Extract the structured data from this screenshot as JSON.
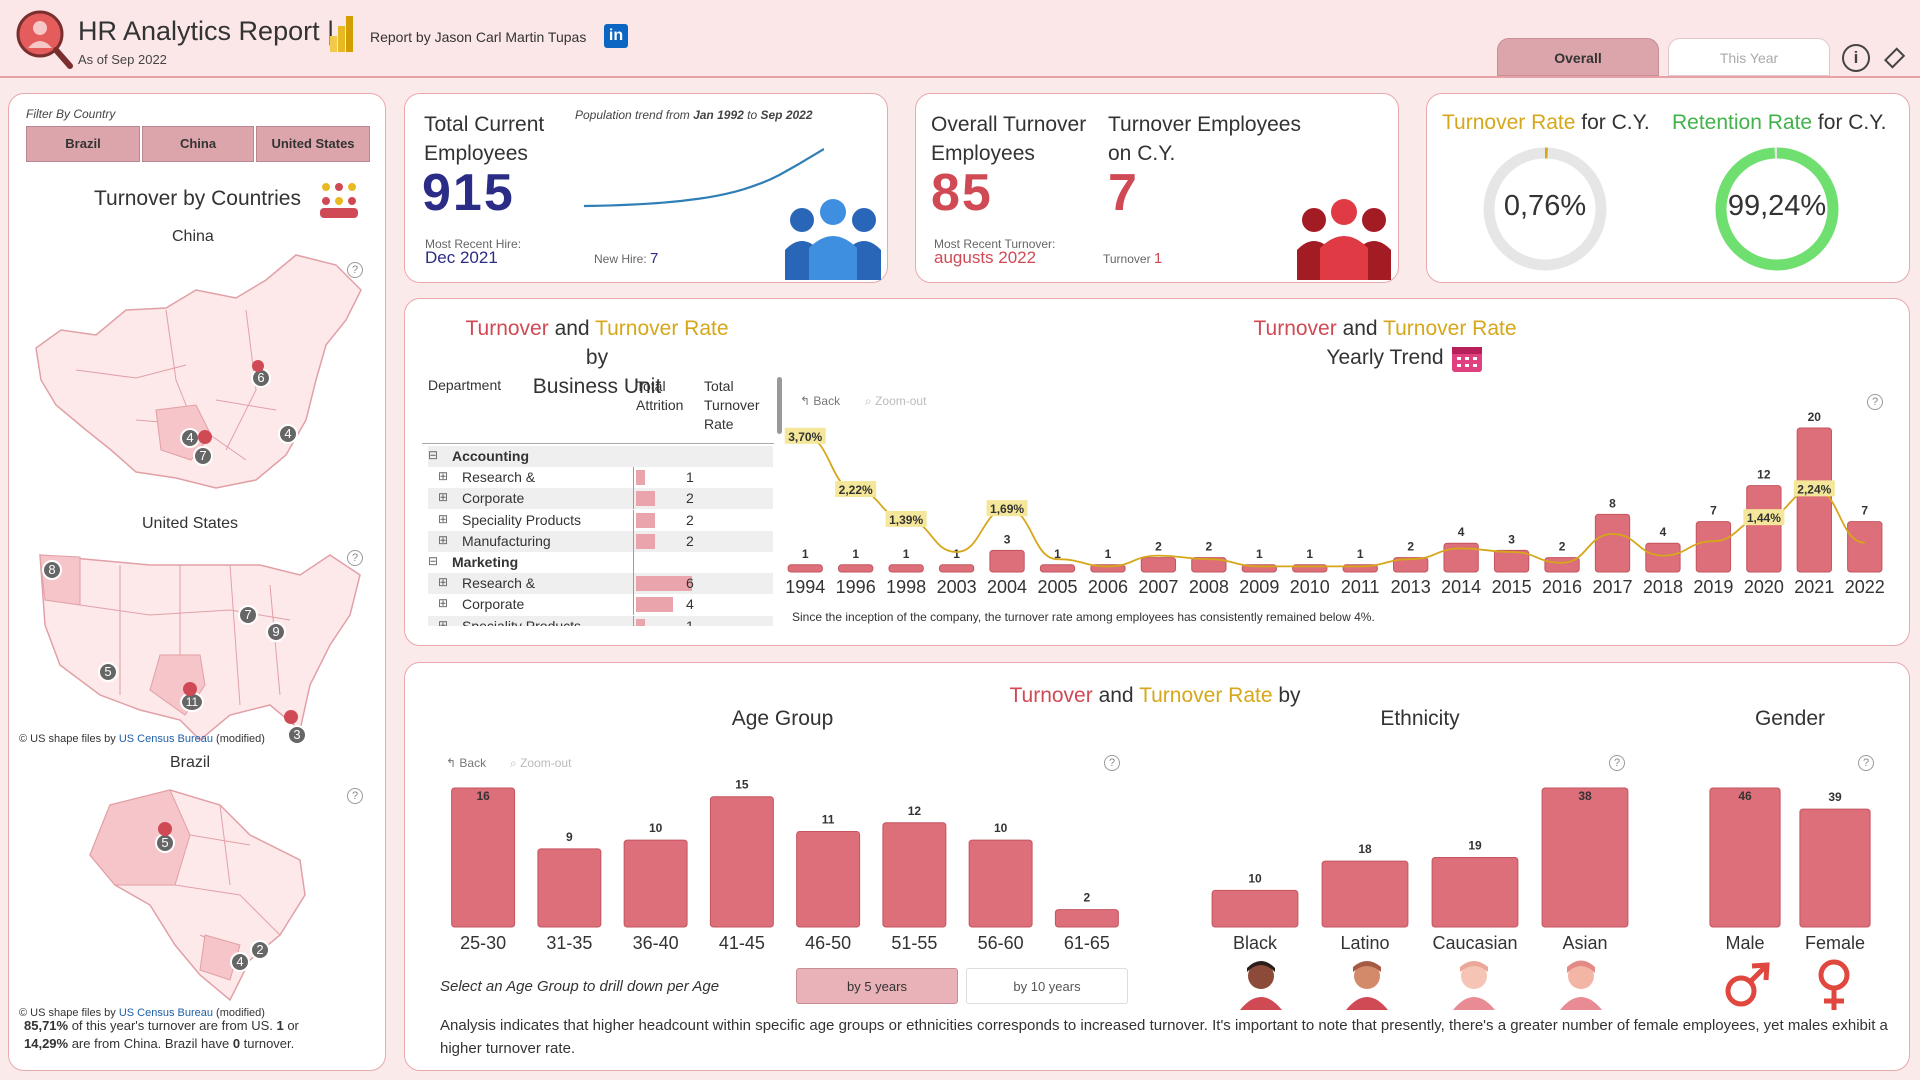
{
  "header": {
    "title": "HR Analytics Report |",
    "subtitle": "As of Sep 2022",
    "report_by": "Report by Jason Carl Martin Tupas",
    "tabs": [
      "Overall",
      "This Year"
    ]
  },
  "filter": {
    "label": "Filter By Country",
    "countries": [
      "Brazil",
      "China",
      "United States"
    ],
    "title": "Turnover by Countries"
  },
  "maps": {
    "china": {
      "title": "China",
      "markers": [
        "6",
        "4",
        "4",
        "7"
      ]
    },
    "us": {
      "title": "United States",
      "markers": [
        "8",
        "7",
        "9",
        "5",
        "11",
        "3"
      ],
      "credit_pre": "© US shape files by ",
      "credit_link": "US Census Bureau",
      "credit_post": " (modified)"
    },
    "brazil": {
      "title": "Brazil",
      "markers": [
        "5",
        "2",
        "4"
      ],
      "credit_pre": "© US shape files by ",
      "credit_link": "US Census Bureau",
      "credit_post": " (modified)"
    }
  },
  "footnote": {
    "p1": "85,71%",
    "p2": " of this year's turnover are from US. ",
    "p3": "1",
    "p4": " or",
    "p5": "14,29%",
    "p6": " are from China.  Brazil have ",
    "p7": "0",
    "p8": " turnover."
  },
  "kpi1": {
    "title_line1": "Total Current",
    "title_line2": "Employees",
    "value": "915",
    "trend_label": "Population trend from ",
    "trend_from": "Jan 1992",
    "trend_to_word": " to ",
    "trend_to": "Sep 2022",
    "recent_label": "Most Recent Hire:",
    "recent_value": "Dec 2021",
    "new_label": "New Hire:",
    "new_value": "7"
  },
  "kpi2": {
    "title_line1": "Overall Turnover",
    "title_line2": "Employees",
    "value": "85",
    "cy_line1": "Turnover Employees",
    "cy_line2": "on C.Y.",
    "cy_value": "7",
    "recent_label": "Most Recent Turnover:",
    "recent_value": "augusts 2022",
    "turnover_label": "Turnover",
    "turnover_value": "1"
  },
  "kpi3": {
    "turnover_label": "Turnover Rate",
    "for_cy": " for C.Y.",
    "retention_label": "Retention Rate",
    "turnover_value": "0,76%",
    "retention_value": "99,24%",
    "turnover_fraction": 0.0076,
    "retention_fraction": 0.9924,
    "colors": {
      "turnover": "#d6a71a",
      "retention": "#6fe06f"
    }
  },
  "bu": {
    "title_a": "Turnover",
    "and": " and ",
    "title_b": "Turnover Rate",
    "by": " by",
    "line2": "Business Unit",
    "columns": [
      "Department",
      "Total Attrition",
      "Total Turnover Rate"
    ],
    "rows": [
      {
        "label": "Accounting",
        "group": true,
        "value": ""
      },
      {
        "label": "Research &",
        "group": false,
        "value": "1"
      },
      {
        "label": "Corporate",
        "group": false,
        "value": "2"
      },
      {
        "label": "Speciality Products",
        "group": false,
        "value": "2"
      },
      {
        "label": "Manufacturing",
        "group": false,
        "value": "2"
      },
      {
        "label": "Marketing",
        "group": true,
        "value": ""
      },
      {
        "label": "Research &",
        "group": false,
        "value": "6"
      },
      {
        "label": "Corporate",
        "group": false,
        "value": "4"
      },
      {
        "label": "Speciality Products",
        "group": false,
        "value": "1"
      }
    ]
  },
  "yearly": {
    "title_a": "Turnover",
    "and": " and ",
    "title_b": "Turnover Rate",
    "line2": "Yearly Trend",
    "back": "Back",
    "zoom": "Zoom-out",
    "note": "Since the inception of the company, the turnover rate among employees has consistently remained below 4%."
  },
  "demo": {
    "title_a": "Turnover",
    "and": " and ",
    "title_b": "Turnover Rate",
    "by": " by",
    "age_title": "Age Group",
    "eth_title": "Ethnicity",
    "gender_title": "Gender",
    "back": "Back",
    "zoom": "Zoom-out",
    "drill_label": "Select an Age Group to drill down per Age",
    "by5": "by 5 years",
    "by10": "by 10 years",
    "analysis": "Analysis indicates that higher headcount within specific age groups or ethnicities corresponds to increased turnover. It's important to note that presently, there's a greater number of female employees, yet males exhibit a higher turnover rate."
  },
  "chart_data": [
    {
      "type": "bar",
      "name": "Yearly Trend",
      "categories": [
        "1994",
        "1996",
        "1998",
        "2003",
        "2004",
        "2005",
        "2006",
        "2007",
        "2008",
        "2009",
        "2010",
        "2011",
        "2013",
        "2014",
        "2015",
        "2016",
        "2017",
        "2018",
        "2019",
        "2020",
        "2021",
        "2022"
      ],
      "series": [
        {
          "values": [
            1,
            1,
            1,
            1,
            3,
            1,
            1,
            2,
            2,
            1,
            1,
            1,
            2,
            4,
            3,
            2,
            8,
            4,
            7,
            12,
            20,
            7
          ]
        },
        {
          "type": "line",
          "values": [
            3.7,
            2.22,
            1.39,
            0.5,
            1.69,
            0.3,
            0.1,
            0.4,
            0.3,
            0.1,
            0.1,
            0.1,
            0.3,
            0.6,
            0.5,
            0.2,
            1.0,
            0.4,
            0.8,
            1.44,
            2.24,
            0.76
          ],
          "labels": {
            "0": "3,70%",
            "1": "2,22%",
            "2": "1,39%",
            "4": "1,69%",
            "19": "1,44%",
            "20": "2,24%"
          }
        }
      ],
      "ylim": [
        0,
        22
      ]
    },
    {
      "type": "bar",
      "name": "Age Group",
      "categories": [
        "25-30",
        "31-35",
        "36-40",
        "41-45",
        "46-50",
        "51-55",
        "56-60",
        "61-65"
      ],
      "values": [
        16,
        9,
        10,
        15,
        11,
        12,
        10,
        2
      ]
    },
    {
      "type": "bar",
      "name": "Ethnicity",
      "categories": [
        "Black",
        "Latino",
        "Caucasian",
        "Asian"
      ],
      "values": [
        10,
        18,
        19,
        38
      ]
    },
    {
      "type": "bar",
      "name": "Gender",
      "categories": [
        "Male",
        "Female"
      ],
      "values": [
        46,
        39
      ]
    }
  ],
  "kpi1_trend": [
    0,
    2,
    5,
    9,
    14,
    20,
    27,
    35,
    44,
    55,
    68,
    82,
    100,
    118,
    140,
    165,
    195,
    230,
    270,
    318,
    370,
    430,
    500,
    580,
    660,
    745,
    830,
    915
  ]
}
